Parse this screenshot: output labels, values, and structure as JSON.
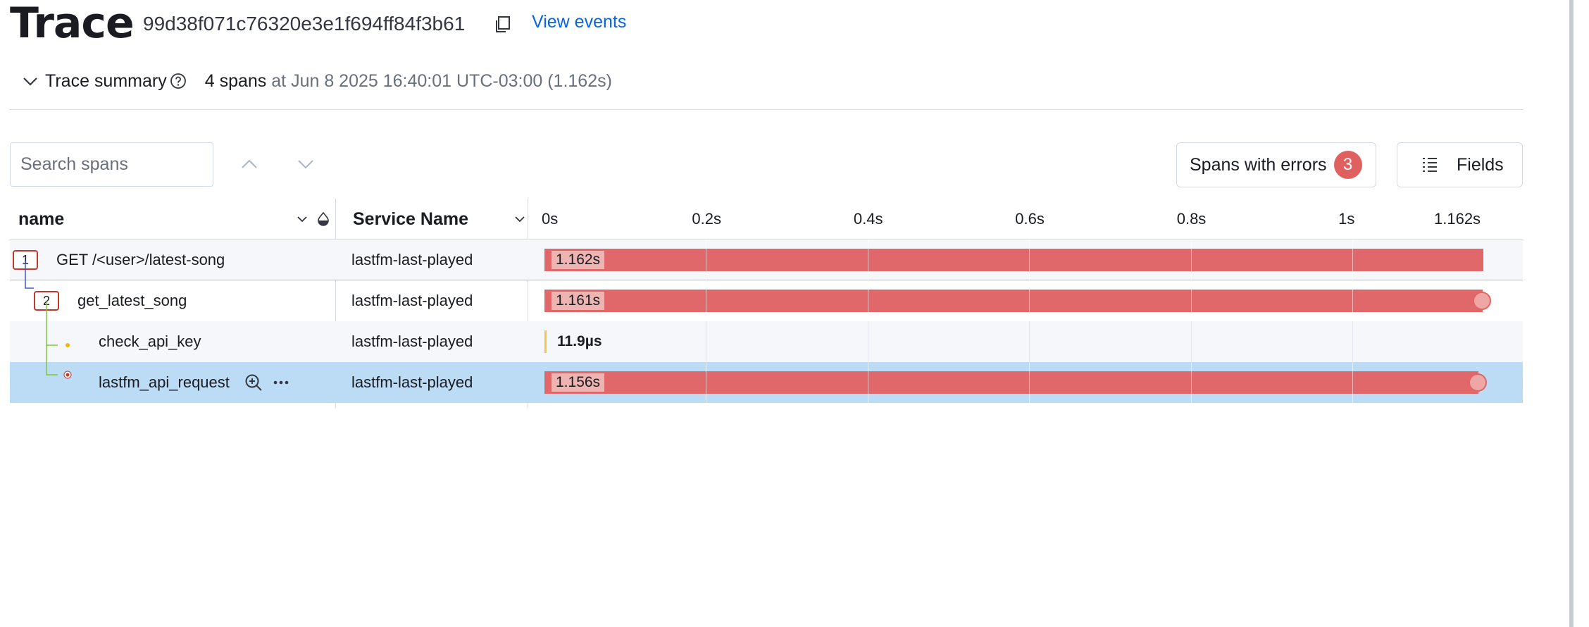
{
  "header": {
    "title": "Trace",
    "trace_id": "99d38f071c76320e3e1f694ff84f3b61",
    "view_events": "View events"
  },
  "summary": {
    "label": "Trace summary",
    "span_count": "4 spans",
    "detail": "at Jun 8 2025 16:40:01 UTC-03:00 (1.162s)"
  },
  "toolbar": {
    "search_placeholder": "Search spans",
    "errors_label": "Spans with errors",
    "errors_count": "3",
    "fields_label": "Fields"
  },
  "table": {
    "col_name": "name",
    "col_service": "Service Name",
    "ticks": [
      "0s",
      "0.2s",
      "0.4s",
      "0.6s",
      "0.8s",
      "1s",
      "1.162s"
    ],
    "rows": [
      {
        "node": "1",
        "name": "GET /<user>/latest-song",
        "service": "lastfm-last-played",
        "duration": "1.162s",
        "start_s": 0,
        "duration_s": 1.162,
        "error": true
      },
      {
        "node": "2",
        "name": "get_latest_song",
        "service": "lastfm-last-played",
        "duration": "1.161s",
        "start_s": 0,
        "duration_s": 1.161,
        "error": true
      },
      {
        "node": "",
        "name": "check_api_key",
        "service": "lastfm-last-played",
        "duration": "11.9µs",
        "start_s": 0,
        "duration_s": 1.19e-05,
        "error": false
      },
      {
        "node": "",
        "name": "lastfm_api_request",
        "service": "lastfm-last-played",
        "duration": "1.156s",
        "start_s": 0,
        "duration_s": 1.156,
        "error": true,
        "selected": true
      }
    ]
  },
  "colors": {
    "error_bar": "#e0676a",
    "ok_bar": "#f6c64a",
    "selected_row": "#bcdcf6",
    "link": "#0b64dd"
  }
}
